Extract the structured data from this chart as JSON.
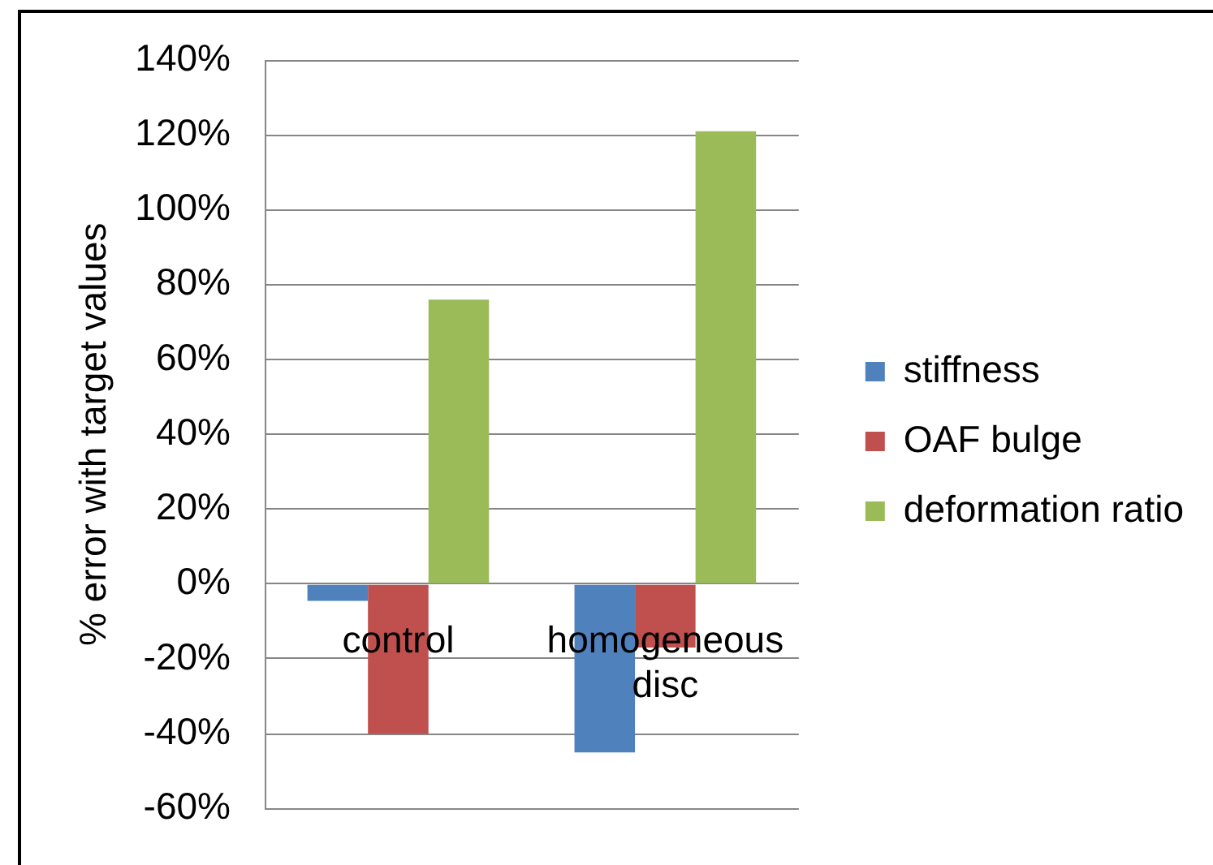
{
  "chart_data": {
    "type": "bar",
    "ylabel": "% error with target values",
    "categories": [
      "control",
      "homogeneous disc"
    ],
    "series": [
      {
        "name": "stiffness",
        "color": "#4f81bd",
        "values": [
          -4.5,
          -45
        ]
      },
      {
        "name": "OAF bulge",
        "color": "#c0504d",
        "values": [
          -40,
          -17
        ]
      },
      {
        "name": "deformation ratio",
        "color": "#9bbb59",
        "values": [
          76,
          121
        ]
      }
    ],
    "ylim": [
      -60,
      140
    ],
    "yticks": [
      {
        "value": -60,
        "label": "-60%"
      },
      {
        "value": -40,
        "label": "-40%"
      },
      {
        "value": -20,
        "label": "-20%"
      },
      {
        "value": 0,
        "label": "0%"
      },
      {
        "value": 20,
        "label": "20%"
      },
      {
        "value": 40,
        "label": "40%"
      },
      {
        "value": 60,
        "label": "60%"
      },
      {
        "value": 80,
        "label": "80%"
      },
      {
        "value": 100,
        "label": "100%"
      },
      {
        "value": 120,
        "label": "120%"
      },
      {
        "value": 140,
        "label": "140%"
      }
    ],
    "grid": "y",
    "legend": "right"
  }
}
